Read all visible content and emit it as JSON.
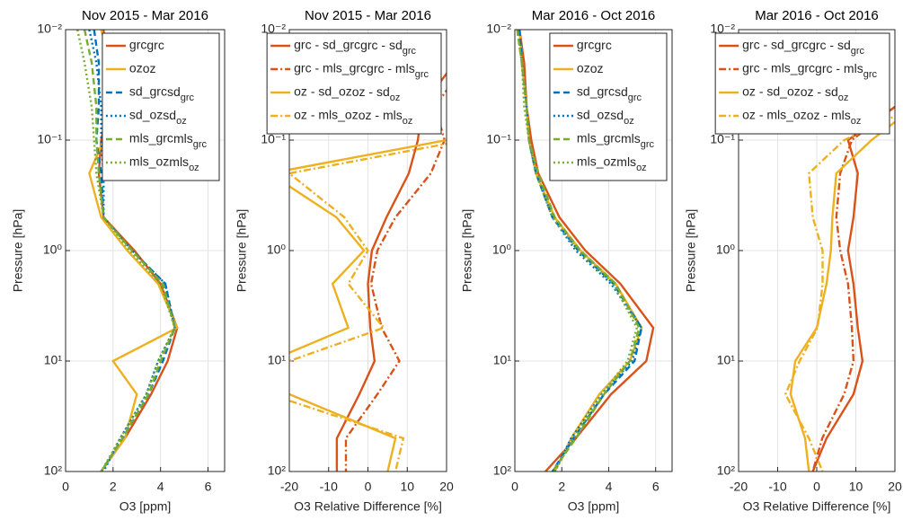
{
  "chart_data": [
    {
      "type": "line",
      "title": "Nov 2015 - Mar 2016",
      "xlabel": "O3 [ppm]",
      "ylabel": "Pressure [hPa]",
      "xlim": [
        0,
        6.7
      ],
      "xticks": [
        0,
        2,
        4,
        6
      ],
      "ylim": [
        0.01,
        100
      ],
      "y_reversed": true,
      "log_y": true,
      "yticks": [
        {
          "value": 0.01,
          "label": "10⁻²"
        },
        {
          "value": 0.1,
          "label": "10⁻¹"
        },
        {
          "value": 1,
          "label": "10⁰"
        },
        {
          "value": 10,
          "label": "10¹"
        },
        {
          "value": 100,
          "label": "10²"
        }
      ],
      "grid": true,
      "legend": "northeast",
      "y": [
        0.01,
        0.02,
        0.05,
        0.1,
        0.2,
        0.5,
        1,
        2,
        5,
        10,
        20,
        50,
        100
      ],
      "series": [
        {
          "name": "grc",
          "color": "#d95319",
          "dash": "solid",
          "values": [
            1.6,
            1.7,
            1.8,
            1.5,
            1.4,
            1.6,
            2.9,
            4.0,
            4.7,
            4.3,
            3.6,
            2.5,
            1.5
          ]
        },
        {
          "name": "oz",
          "color": "#edb120",
          "dash": "solid",
          "values": [
            1.5,
            1.9,
            2.2,
            1.6,
            1.0,
            1.5,
            2.6,
            3.9,
            4.7,
            2.0,
            3.0,
            2.5,
            1.5
          ]
        },
        {
          "name": "sd_grc",
          "color": "#0072bd",
          "dash": "dash",
          "values": [
            1.2,
            1.4,
            1.4,
            1.3,
            1.5,
            1.6,
            2.8,
            4.2,
            4.6,
            4.1,
            3.5,
            2.4,
            1.5
          ]
        },
        {
          "name": "sd_oz",
          "color": "#0072bd",
          "dash": "dot",
          "values": [
            1.0,
            1.3,
            1.5,
            1.5,
            1.6,
            1.6,
            2.8,
            4.2,
            4.6,
            3.9,
            3.4,
            2.3,
            1.6
          ]
        },
        {
          "name": "mls_grc",
          "color": "#77ac30",
          "dash": "dash",
          "values": [
            0.8,
            1.1,
            1.3,
            1.3,
            1.4,
            1.6,
            2.8,
            4.1,
            4.6,
            4.0,
            3.5,
            2.4,
            1.5
          ]
        },
        {
          "name": "mls_oz",
          "color": "#77ac30",
          "dash": "dot",
          "values": [
            0.5,
            0.8,
            1.1,
            1.2,
            1.3,
            1.6,
            2.7,
            4.0,
            4.6,
            3.9,
            3.4,
            2.3,
            1.5
          ]
        }
      ]
    },
    {
      "type": "line",
      "title": "Nov 2015 - Mar 2016",
      "xlabel": "O3 Relative Difference [%]",
      "ylabel": "Pressure [hPa]",
      "xlim": [
        -20,
        20
      ],
      "xticks": [
        -20,
        -10,
        0,
        10,
        20
      ],
      "ylim": [
        0.01,
        100
      ],
      "y_reversed": true,
      "log_y": true,
      "yticks": [
        {
          "value": 0.01,
          "label": "10⁻²"
        },
        {
          "value": 0.1,
          "label": "10⁻¹"
        },
        {
          "value": 1,
          "label": "10⁰"
        },
        {
          "value": 10,
          "label": "10¹"
        },
        {
          "value": 100,
          "label": "10²"
        }
      ],
      "grid": true,
      "legend": "northeast",
      "y": [
        0.01,
        0.02,
        0.05,
        0.1,
        0.2,
        0.5,
        1,
        2,
        5,
        10,
        20,
        50,
        100
      ],
      "series": [
        {
          "name": "grc - sd_grc",
          "color": "#d95319",
          "dash": "solid",
          "values": [
            null,
            22,
            13.7,
            12.7,
            10.4,
            4.7,
            1.0,
            0,
            0.6,
            1.7,
            -2.2,
            -7.9,
            -7.9
          ]
        },
        {
          "name": "grc - mls_grc",
          "color": "#d95319",
          "dash": "dashdot",
          "values": [
            null,
            25,
            17,
            19.5,
            16,
            7,
            2.4,
            0.8,
            3.5,
            8,
            2.4,
            -5.6,
            -5.6
          ]
        },
        {
          "name": "oz - sd_oz",
          "color": "#edb120",
          "dash": "solid",
          "values": [
            null,
            null,
            null,
            20,
            -25,
            -8,
            -1,
            -9,
            -5,
            -25,
            -20,
            7,
            5
          ]
        },
        {
          "name": "oz - mls_oz",
          "color": "#edb120",
          "dash": "dashdot",
          "values": [
            null,
            null,
            null,
            25,
            -20,
            -6,
            0,
            -5,
            4,
            -20,
            -25,
            9,
            7
          ]
        }
      ]
    },
    {
      "type": "line",
      "title": "Mar 2016 - Oct 2016",
      "xlabel": "O3 [ppm]",
      "ylabel": "Pressure [hPa]",
      "xlim": [
        0,
        6.7
      ],
      "xticks": [
        0,
        2,
        4,
        6
      ],
      "ylim": [
        0.01,
        100
      ],
      "y_reversed": true,
      "log_y": true,
      "yticks": [
        {
          "value": 0.01,
          "label": "10⁻²"
        },
        {
          "value": 0.1,
          "label": "10⁻¹"
        },
        {
          "value": 1,
          "label": "10⁰"
        },
        {
          "value": 10,
          "label": "10¹"
        },
        {
          "value": 100,
          "label": "10²"
        }
      ],
      "grid": true,
      "legend": "northeast",
      "y": [
        0.01,
        0.02,
        0.05,
        0.1,
        0.2,
        0.5,
        1,
        2,
        5,
        10,
        20,
        50,
        100
      ],
      "series": [
        {
          "name": "grc",
          "color": "#d95319",
          "dash": "solid",
          "values": [
            0.2,
            0.4,
            0.5,
            0.7,
            1.0,
            1.9,
            3.0,
            4.5,
            5.9,
            5.6,
            4.1,
            2.6,
            1.3
          ]
        },
        {
          "name": "oz",
          "color": "#edb120",
          "dash": "solid",
          "values": [
            0.2,
            0.3,
            0.5,
            0.6,
            0.9,
            1.7,
            2.8,
            4.3,
            5.4,
            4.9,
            3.6,
            2.4,
            1.7
          ]
        },
        {
          "name": "sd_grc",
          "color": "#0072bd",
          "dash": "dash",
          "values": [
            0.2,
            0.3,
            0.5,
            0.6,
            0.9,
            1.6,
            2.7,
            4.2,
            5.4,
            5.1,
            3.8,
            2.5,
            1.6
          ]
        },
        {
          "name": "sd_oz",
          "color": "#0072bd",
          "dash": "dot",
          "values": [
            0.2,
            0.3,
            0.5,
            0.6,
            0.9,
            1.6,
            2.6,
            4.1,
            5.4,
            5.0,
            3.7,
            2.4,
            1.7
          ]
        },
        {
          "name": "mls_grc",
          "color": "#77ac30",
          "dash": "dash",
          "values": [
            0.1,
            0.3,
            0.5,
            0.6,
            1.0,
            1.7,
            2.8,
            4.3,
            5.3,
            4.9,
            3.8,
            2.6,
            1.6
          ]
        },
        {
          "name": "mls_oz",
          "color": "#77ac30",
          "dash": "dot",
          "values": [
            0.1,
            0.3,
            0.4,
            0.6,
            0.9,
            1.6,
            2.7,
            4.2,
            5.2,
            4.8,
            3.7,
            2.5,
            1.7
          ]
        }
      ]
    },
    {
      "type": "line",
      "title": "Mar 2016 - Oct 2016",
      "xlabel": "O3 Relative Difference [%]",
      "ylabel": "Pressure [hPa]",
      "xlim": [
        -20,
        20
      ],
      "xticks": [
        -20,
        -10,
        0,
        10,
        20
      ],
      "ylim": [
        0.01,
        100
      ],
      "y_reversed": true,
      "log_y": true,
      "yticks": [
        {
          "value": 0.01,
          "label": "10⁻²"
        },
        {
          "value": 0.1,
          "label": "10⁻¹"
        },
        {
          "value": 1,
          "label": "10⁰"
        },
        {
          "value": 10,
          "label": "10¹"
        },
        {
          "value": 100,
          "label": "10²"
        }
      ],
      "grid": true,
      "legend": "northeast",
      "y": [
        0.01,
        0.02,
        0.05,
        0.1,
        0.2,
        0.5,
        1,
        2,
        5,
        10,
        20,
        50,
        100
      ],
      "series": [
        {
          "name": "grc - sd_grc",
          "color": "#d95319",
          "dash": "solid",
          "values": [
            null,
            null,
            20,
            8,
            10.5,
            9.4,
            8,
            9.4,
            10.5,
            11.7,
            9.4,
            2.5,
            -1
          ]
        },
        {
          "name": "grc - mls_grc",
          "color": "#d95319",
          "dash": "dashdot",
          "values": [
            null,
            30,
            20,
            9,
            6,
            5,
            6,
            8,
            9,
            9.4,
            7,
            1.4,
            -1
          ]
        },
        {
          "name": "oz - sd_oz",
          "color": "#edb120",
          "dash": "solid",
          "values": [
            null,
            null,
            25,
            14,
            5,
            4,
            3.6,
            2.5,
            0,
            -5.5,
            -6.7,
            -3,
            -2
          ]
        },
        {
          "name": "oz - mls_oz",
          "color": "#edb120",
          "dash": "dashdot",
          "values": [
            null,
            null,
            25,
            7,
            -2,
            -1,
            1.5,
            1.5,
            0.2,
            -4.4,
            -8,
            -2,
            1.5
          ]
        }
      ]
    }
  ]
}
